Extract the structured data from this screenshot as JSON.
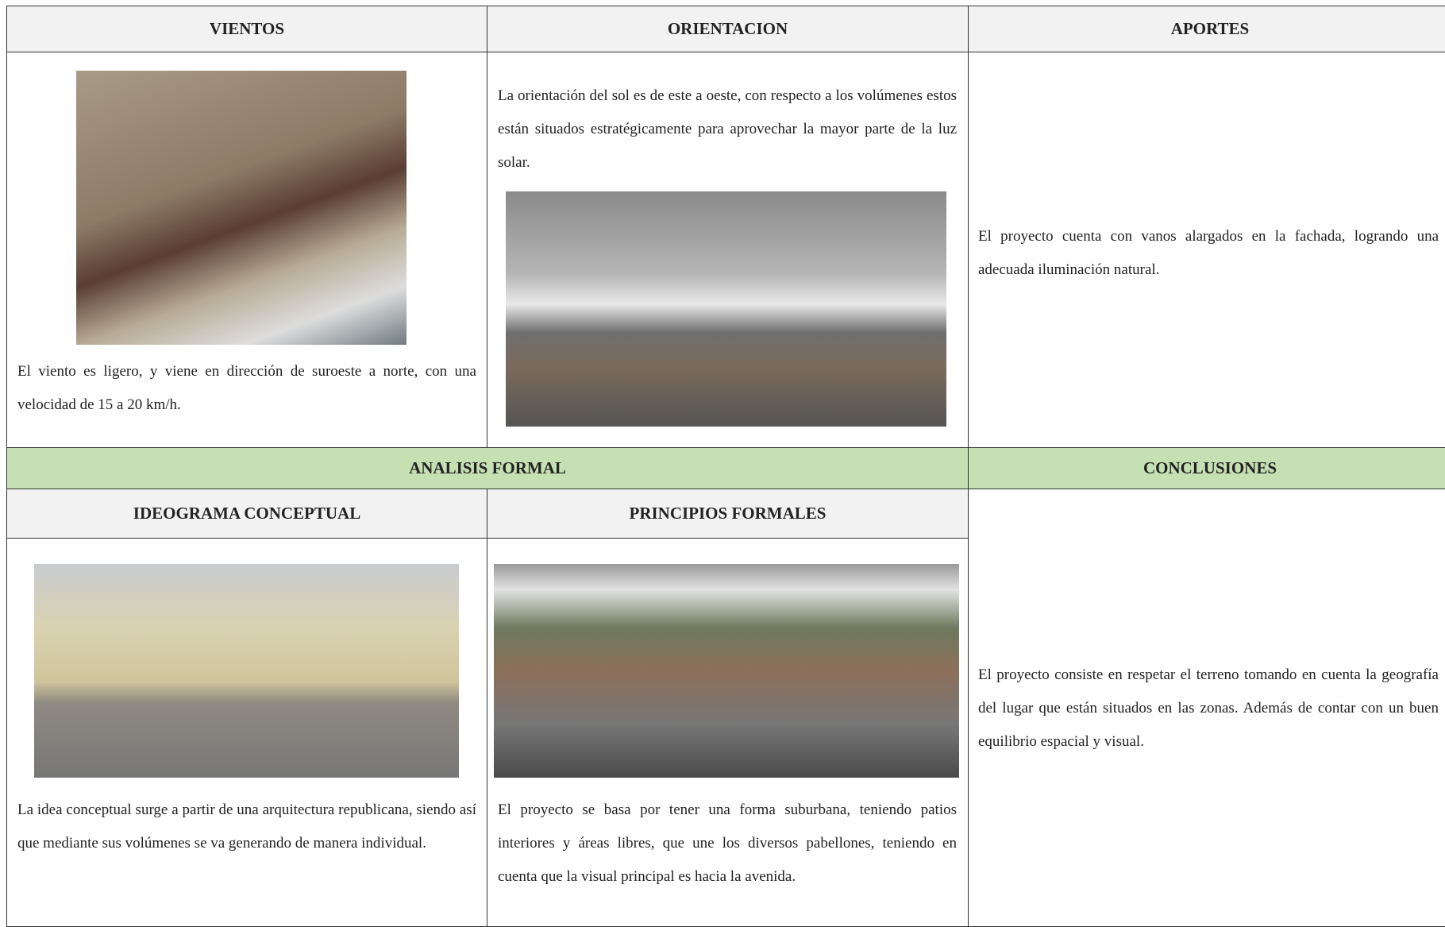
{
  "header": {
    "columns": [
      "VIENTOS",
      "ORIENTACION",
      "APORTES"
    ]
  },
  "vientos": {
    "text": "El viento es ligero, y viene en dirección de suroeste a norte, con una velocidad de 15 a 20 km/h."
  },
  "orientacion": {
    "text": "La orientación del sol es de este a oeste, con respecto a los volúmenes estos están situados estratégicamente para aprovechar la mayor parte de la luz solar."
  },
  "aportes": {
    "text": "El proyecto cuenta con vanos alargados en la fachada, logrando una adecuada iluminación natural."
  },
  "section": {
    "analisis": "ANALISIS FORMAL",
    "conclusiones": "CONCLUSIONES"
  },
  "ideograma": {
    "title": "IDEOGRAMA CONCEPTUAL",
    "text": "La idea conceptual surge a partir de una arquitectura republicana, siendo así que mediante sus volúmenes se va generando de manera individual."
  },
  "principios": {
    "title": "PRINCIPIOS FORMALES",
    "text": "El proyecto se basa por tener una forma suburbana, teniendo patios interiores y áreas libres, que une los diversos pabellones, teniendo en cuenta que la visual principal es hacia la avenida."
  },
  "conclusiones": {
    "text": "El proyecto consiste en respetar el terreno tomando en cuenta la geografía del lugar que están situados en las zonas. Además de contar con un buen equilibrio espacial y visual."
  }
}
